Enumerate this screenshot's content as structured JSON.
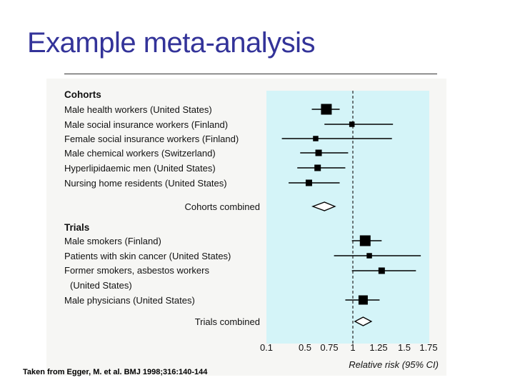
{
  "slide": {
    "title": "Example meta-analysis",
    "caption": "Taken from Egger, M. et al. BMJ 1998;316:140-144"
  },
  "chart_data": {
    "type": "forest",
    "xlabel": "Relative risk (95% CI)",
    "ticks": [
      "0.1",
      "0.5",
      "0.75",
      "1",
      "1.25",
      "1.5",
      "1.75"
    ],
    "tick_values": [
      0.1,
      0.5,
      0.75,
      1,
      1.25,
      1.5,
      1.75
    ],
    "reference_line": 1,
    "groups": [
      {
        "header": "Cohorts",
        "studies": [
          {
            "label": "Male health workers (United States)",
            "rr": 0.72,
            "lo": 0.57,
            "hi": 0.86,
            "weight": 3
          },
          {
            "label": "Male social insurance workers (Finland)",
            "rr": 0.99,
            "lo": 0.7,
            "hi": 1.39,
            "weight": 1.5
          },
          {
            "label": "Female social insurance workers (Finland)",
            "rr": 0.61,
            "lo": 0.26,
            "hi": 1.38,
            "weight": 1.5
          },
          {
            "label": "Male chemical workers (Switzerland)",
            "rr": 0.64,
            "lo": 0.45,
            "hi": 0.95,
            "weight": 1.8
          },
          {
            "label": "Hyperlipidaemic men (United States)",
            "rr": 0.63,
            "lo": 0.42,
            "hi": 0.92,
            "weight": 1.8
          },
          {
            "label": "Nursing home residents (United States)",
            "rr": 0.54,
            "lo": 0.33,
            "hi": 0.86,
            "weight": 1.8
          }
        ],
        "combined": {
          "label": "Cohorts combined",
          "rr": 0.7,
          "lo": 0.58,
          "hi": 0.81
        }
      },
      {
        "header": "Trials",
        "studies": [
          {
            "label": "Male smokers (Finland)",
            "rr": 1.12,
            "lo": 0.99,
            "hi": 1.28,
            "weight": 3
          },
          {
            "label": "Patients with skin cancer (United States)",
            "rr": 1.16,
            "lo": 0.8,
            "hi": 1.67,
            "weight": 1.5
          },
          {
            "label": "Former smokers, asbestos workers",
            "label2": "(United States)",
            "rr": 1.28,
            "lo": 0.99,
            "hi": 1.62,
            "weight": 1.8
          },
          {
            "label": "Male physicians (United States)",
            "rr": 1.1,
            "lo": 0.92,
            "hi": 1.26,
            "weight": 2.6
          }
        ],
        "combined": {
          "label": "Trials combined",
          "rr": 1.1,
          "lo": 1.02,
          "hi": 1.18
        }
      }
    ],
    "colors": {
      "plot_background": "#d4f4f8",
      "marker": "#000000",
      "reference": "#333333"
    }
  }
}
